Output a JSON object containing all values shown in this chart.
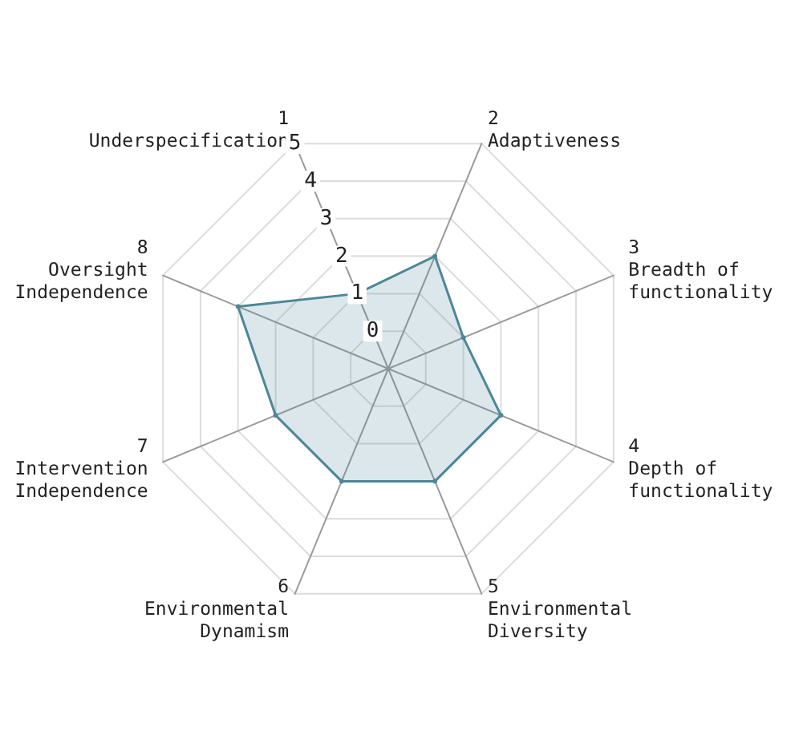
{
  "chart_data": {
    "type": "radar",
    "categories": [
      "1\nUnderspecification",
      "2\nAdaptiveness",
      "3\nBreadth of\nfunctionality",
      "4\nDepth of\nfunctionality",
      "5\nEnvironmental\nDiversity",
      "6\nEnvironmental\nDynamism",
      "7\nIntervention\nIndependence",
      "8\nOversight\nIndependence"
    ],
    "series": [
      {
        "color": "#4d8799",
        "values": [
          1,
          2,
          1,
          2,
          2,
          2,
          2,
          3
        ]
      }
    ],
    "ylim": [
      -1,
      5
    ],
    "yticks": [
      0,
      1,
      2,
      3,
      4,
      5
    ],
    "grid": true,
    "marker": "circle"
  }
}
